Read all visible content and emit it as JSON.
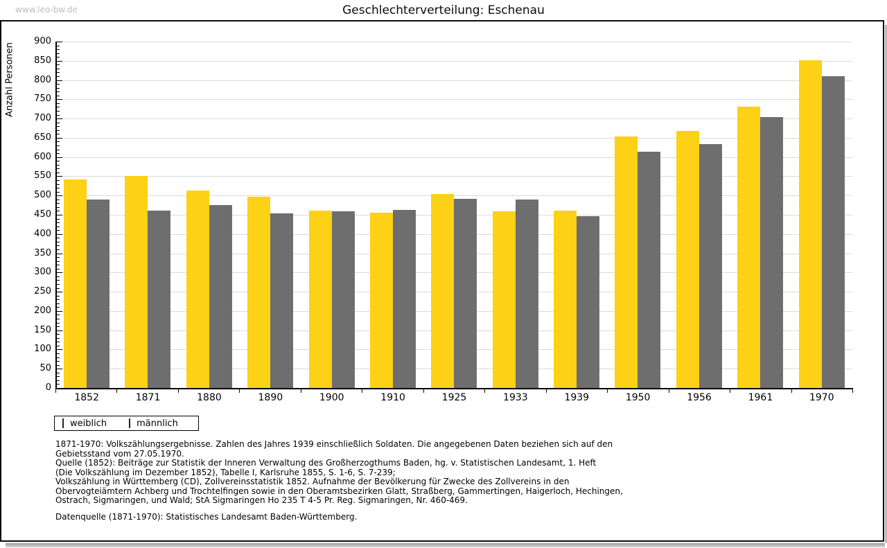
{
  "header": {
    "watermark": "www.leo-bw.de",
    "title": "Geschlechterverteilung: Eschenau"
  },
  "chart_data": {
    "type": "bar",
    "title": "Geschlechterverteilung: Eschenau",
    "xlabel": "",
    "ylabel": "Anzahl Personen",
    "ylim": [
      0,
      900
    ],
    "ytick_step": 50,
    "yminor_step": 10,
    "grid": true,
    "legend_position": "bottom-left",
    "categories": [
      "1852",
      "1871",
      "1880",
      "1890",
      "1900",
      "1910",
      "1925",
      "1933",
      "1939",
      "1950",
      "1956",
      "1961",
      "1970"
    ],
    "series": [
      {
        "name": "weiblich",
        "color": "#FCD116",
        "values": [
          542,
          550,
          513,
          497,
          461,
          456,
          504,
          459,
          461,
          654,
          667,
          730,
          852
        ]
      },
      {
        "name": "männlich",
        "color": "#6E6E6E",
        "values": [
          490,
          461,
          476,
          453,
          459,
          463,
          491,
          489,
          447,
          614,
          634,
          703,
          810
        ]
      }
    ]
  },
  "footnotes": [
    "1871-1970: Volkszählungsergebnisse. Zahlen des Jahres 1939 einschließlich Soldaten. Die angegebenen Daten beziehen sich auf den",
    "Gebietsstand vom 27.05.1970.",
    "Quelle (1852): Beiträge zur Statistik der Inneren Verwaltung des Großherzogthums Baden, hg. v. Statistischen Landesamt, 1. Heft",
    "(Die Volkszählung im Dezember 1852), Tabelle I, Karlsruhe 1855, S. 1-6, S. 7-239;",
    "Volkszählung in Württemberg (CD), Zollvereinsstatistik 1852. Aufnahme der Bevölkerung für Zwecke des Zollvereins in den",
    "Obervogteiämtern Achberg und Trochtelfingen sowie in den Oberamtsbezirken Glatt, Straßberg, Gammertingen, Haigerloch, Hechingen,",
    "Ostrach, Sigmaringen, und Wald; StA Sigmaringen Ho 235 T 4-5 Pr. Reg. Sigmaringen, Nr. 460-469."
  ],
  "datasource": "Datenquelle (1871-1970): Statistisches Landesamt Baden-Württemberg.",
  "colors": {
    "female_bar": "#FCD116",
    "male_bar": "#6E6E6E",
    "gridline": "#DADADA",
    "axis": "#000000",
    "watermark": "#BDBDBD"
  }
}
